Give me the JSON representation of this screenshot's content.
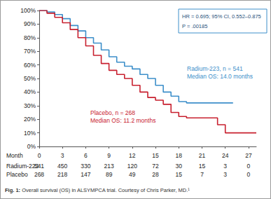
{
  "chart_data": {
    "type": "step",
    "xlim": [
      0,
      28
    ],
    "xticks": [
      0,
      3,
      6,
      9,
      12,
      15,
      18,
      21,
      24,
      27
    ],
    "ylim": [
      0,
      100
    ],
    "yticks": [
      {
        "value": 0,
        "label": "0%"
      },
      {
        "value": 10,
        "label": "10%"
      },
      {
        "value": 20,
        "label": "20%"
      },
      {
        "value": 30,
        "label": "30%"
      },
      {
        "value": 40,
        "label": "40%"
      },
      {
        "value": 50,
        "label": "50%"
      },
      {
        "value": 60,
        "label": "60%"
      },
      {
        "value": 70,
        "label": "70%"
      },
      {
        "value": 80,
        "label": "80%"
      },
      {
        "value": 90,
        "label": "90%"
      },
      {
        "value": 100,
        "label": "100%"
      }
    ],
    "grid": false,
    "series": [
      {
        "name": "Radium-223",
        "color": "#3d8fca",
        "annotation": [
          "Radium-223, n = 541",
          "Median OS: 14.0 months"
        ],
        "x": [
          0,
          1,
          2,
          3,
          4,
          5,
          6,
          7,
          8,
          9,
          10,
          11,
          12,
          13,
          14,
          15,
          16,
          17,
          18,
          19,
          25
        ],
        "values": [
          100,
          99,
          97,
          94,
          89,
          85,
          80,
          76,
          71,
          66,
          62,
          59,
          57,
          53,
          50,
          45,
          40,
          37,
          33,
          32,
          32
        ]
      },
      {
        "name": "Placebo",
        "color": "#c8202f",
        "annotation": [
          "Placebo, n = 268",
          "Median OS: 11.2 months"
        ],
        "x": [
          0,
          1,
          2,
          3,
          4,
          5,
          6,
          7,
          8,
          9,
          10,
          11,
          12,
          13,
          14,
          15,
          16,
          17,
          18,
          19,
          23,
          24,
          28
        ],
        "values": [
          100,
          98,
          95,
          91,
          86,
          80,
          74,
          67,
          61,
          56,
          53,
          50,
          45,
          40,
          36,
          34,
          31,
          25,
          22,
          21,
          16,
          10,
          10
        ]
      }
    ],
    "annotations": [
      "HR = 0.695; 95% CI, 0.552–0.875",
      "P = .00185"
    ],
    "at_risk": {
      "label": "Month",
      "rows": [
        {
          "name": "Radium-223",
          "values": [
            541,
            450,
            330,
            213,
            120,
            72,
            30,
            15,
            3,
            0
          ]
        },
        {
          "name": "Placebo",
          "values": [
            268,
            218,
            147,
            89,
            49,
            28,
            15,
            7,
            3,
            0
          ]
        }
      ]
    },
    "caption": {
      "label": "Fig. 1:",
      "text": "Overall survival (OS) in ALSYMPCA trial. Courtesy of Chris Parker, MD.¹"
    }
  }
}
